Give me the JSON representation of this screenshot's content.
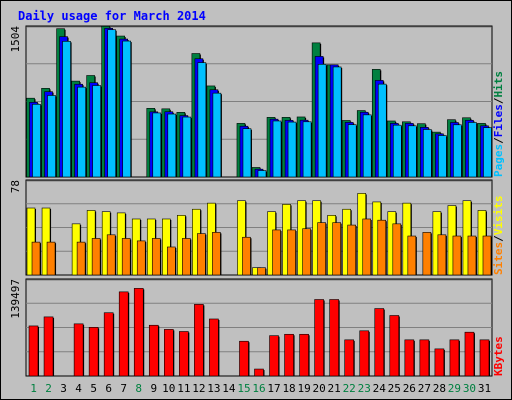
{
  "chart_data": {
    "type": "bar",
    "title": "Daily usage for March 2014",
    "categories": [
      "1",
      "2",
      "3",
      "4",
      "5",
      "6",
      "7",
      "8",
      "9",
      "10",
      "11",
      "12",
      "13",
      "14",
      "15",
      "16",
      "17",
      "18",
      "19",
      "20",
      "21",
      "22",
      "23",
      "24",
      "25",
      "26",
      "27",
      "28",
      "29",
      "30",
      "31"
    ],
    "weekend_days": [
      1,
      2,
      8,
      15,
      16,
      22,
      23,
      29,
      30
    ],
    "panels": [
      {
        "id": "top",
        "max_label": "1504",
        "ylim": [
          0,
          1504
        ],
        "series": [
          {
            "name": "Hits",
            "color": "#008040",
            "values": [
              785,
              883,
              1477,
              955,
              1011,
              1501,
              1404,
              0,
              684,
              679,
              644,
              1230,
              907,
              0,
              534,
              95,
              594,
              594,
              598,
              1336,
              1117,
              563,
              662,
              1072,
              558,
              550,
              531,
              447,
              571,
              590,
              534
            ]
          },
          {
            "name": "Files",
            "color": "#0000FF",
            "values": [
              744,
              850,
              1398,
              924,
              939,
              1481,
              1374,
              0,
              649,
              650,
              612,
              1178,
              869,
              0,
              506,
              78,
              576,
              564,
              566,
              1201,
              1117,
              544,
              645,
              962,
              534,
              534,
              495,
              430,
              543,
              565,
              510
            ]
          },
          {
            "name": "Pages",
            "color": "#00C0FF",
            "values": [
              724,
              812,
              1351,
              895,
              911,
              1467,
              1354,
              0,
              638,
              627,
              597,
              1139,
              835,
              0,
              481,
              64,
              558,
              547,
              550,
              1122,
              1096,
              521,
              619,
              925,
              516,
              510,
              473,
              413,
              520,
              543,
              491
            ]
          }
        ]
      },
      {
        "id": "middle",
        "max_label": "78",
        "ylim": [
          0,
          78
        ],
        "series": [
          {
            "name": "Visits",
            "color": "#FFFF00",
            "values": [
              55,
              55,
              0,
              42,
              53,
              52,
              51,
              46,
              46,
              46,
              49,
              54,
              59,
              0,
              61,
              6,
              52,
              58,
              61,
              61,
              49,
              54,
              67,
              60,
              52,
              59,
              0,
              52,
              57,
              61,
              53
            ]
          },
          {
            "name": "Sites",
            "color": "#FF8000",
            "values": [
              27,
              27,
              0,
              27,
              30,
              33,
              30,
              28,
              30,
              23,
              30,
              34,
              35,
              0,
              31,
              6,
              37,
              37,
              38,
              43,
              43,
              41,
              46,
              45,
              42,
              32,
              35,
              33,
              32,
              32,
              32
            ]
          }
        ]
      },
      {
        "id": "bottom",
        "max_label": "139497",
        "ylim": [
          0,
          139497
        ],
        "series": [
          {
            "name": "KBytes",
            "color": "#FF0000",
            "values": [
              72000,
              85000,
              0,
              75000,
              70000,
              91000,
              121000,
              126000,
              73000,
              67000,
              64000,
              103000,
              82000,
              0,
              50000,
              10000,
              58000,
              60000,
              60000,
              110000,
              110000,
              52000,
              65000,
              97000,
              87000,
              52000,
              52000,
              39000,
              52000,
              63000,
              52000
            ]
          }
        ]
      }
    ]
  }
}
